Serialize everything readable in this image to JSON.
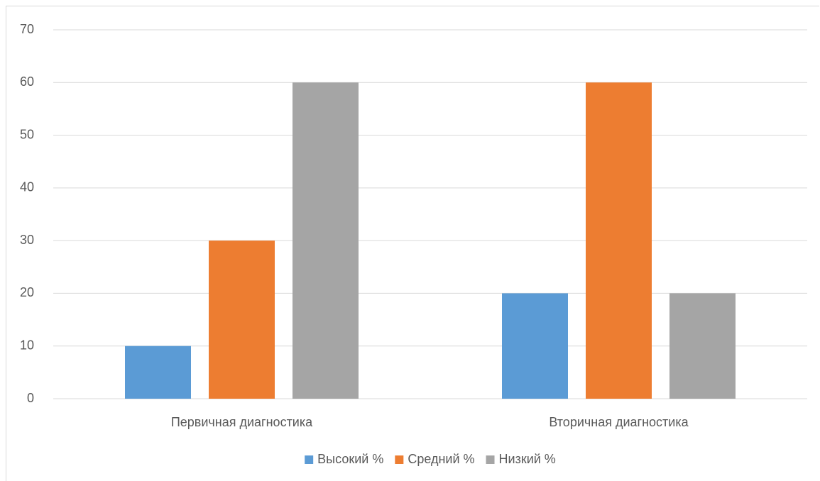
{
  "chart_data": {
    "type": "bar",
    "categories": [
      "Первичная диагностика",
      "Вторичная диагностика"
    ],
    "series": [
      {
        "name": "Высокий %",
        "values": [
          10,
          20
        ],
        "color": "#5B9BD5"
      },
      {
        "name": "Средний %",
        "values": [
          30,
          60
        ],
        "color": "#ED7D31"
      },
      {
        "name": "Низкий %",
        "values": [
          60,
          20
        ],
        "color": "#A5A5A5"
      }
    ],
    "ylim": [
      0,
      70
    ],
    "yticks": [
      0,
      10,
      20,
      30,
      40,
      50,
      60,
      70
    ],
    "grid": true,
    "gridColor": "#d9d9d9",
    "legend": "bottom"
  }
}
